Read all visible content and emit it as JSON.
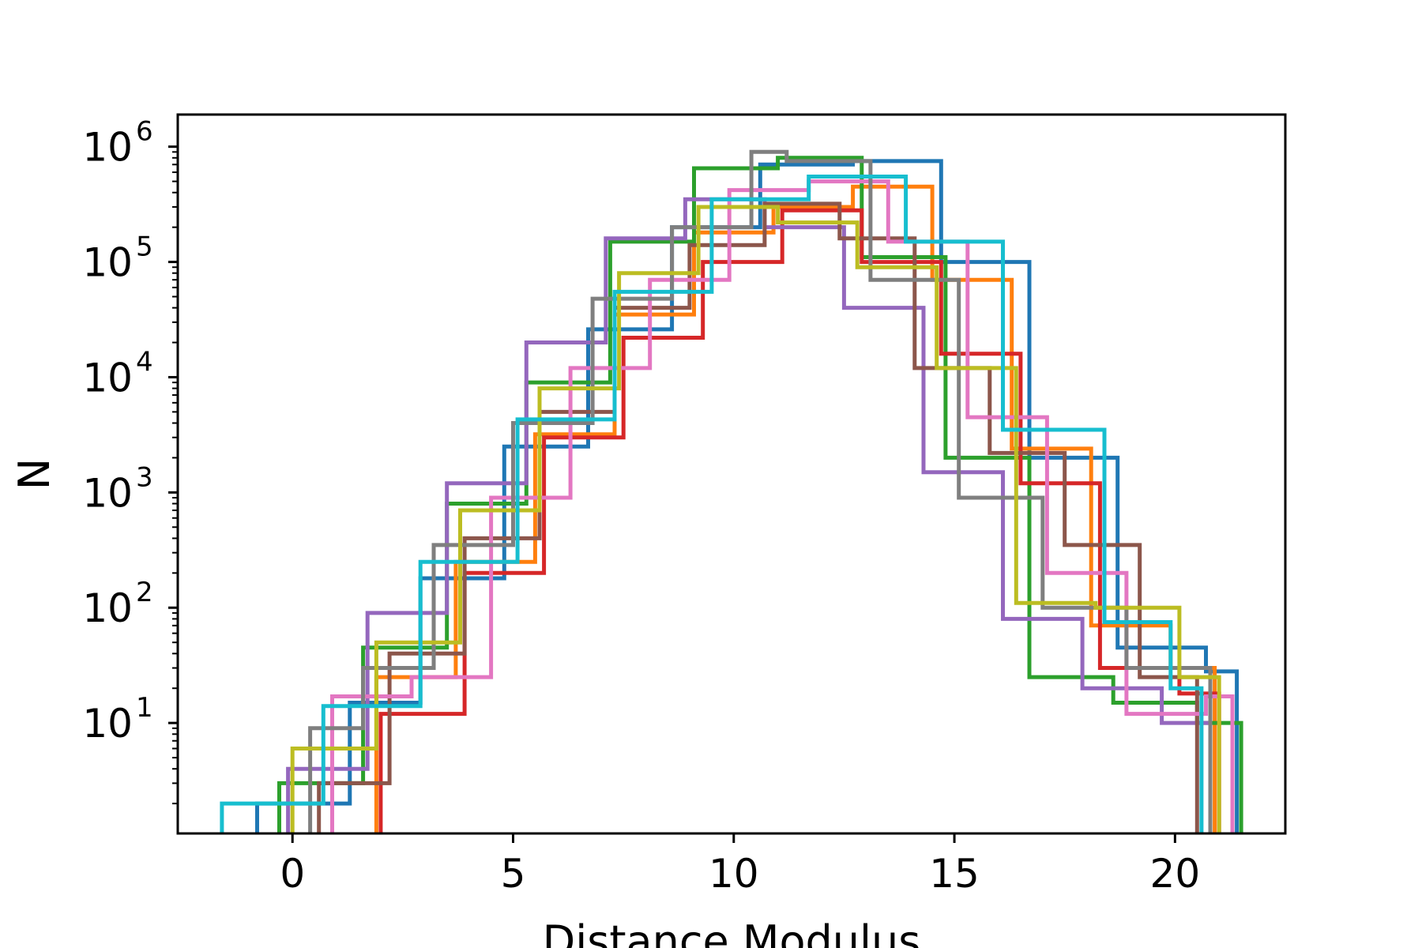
{
  "chart_data": {
    "type": "histogram",
    "title": "",
    "xlabel": "Distance Modulus",
    "ylabel": "N",
    "xlim": [
      -2.6,
      22.5
    ],
    "ylim": [
      1.1,
      1900000.0
    ],
    "yscale": "log",
    "grid": false,
    "legend": "none",
    "x_ticks": [
      0,
      5,
      10,
      15,
      20
    ],
    "x_tick_labels": [
      "0",
      "5",
      "10",
      "15",
      "20"
    ],
    "y_ticks": [
      10,
      100,
      1000,
      10000,
      100000,
      1000000
    ],
    "y_tick_labels": [
      {
        "base": "10",
        "exp": "1"
      },
      {
        "base": "10",
        "exp": "2"
      },
      {
        "base": "10",
        "exp": "3"
      },
      {
        "base": "10",
        "exp": "4"
      },
      {
        "base": "10",
        "exp": "5"
      },
      {
        "base": "10",
        "exp": "6"
      }
    ],
    "series": [
      {
        "color": "#1f77b4",
        "edges": [
          -0.8,
          1.3,
          2.9,
          4.8,
          6.7,
          8.6,
          10.6,
          12.7,
          14.7,
          16.7,
          18.7,
          20.7,
          21.4
        ],
        "values": [
          2,
          15,
          180,
          2500,
          26000,
          200000,
          700000,
          750000,
          100000,
          2000,
          45,
          28
        ]
      },
      {
        "color": "#ff7f0e",
        "edges": [
          0.0,
          1.9,
          3.7,
          5.5,
          7.3,
          9.1,
          10.9,
          12.7,
          14.5,
          16.3,
          18.1,
          19.9,
          20.9
        ],
        "values": [
          1,
          25,
          250,
          3200,
          35000,
          180000,
          300000,
          450000,
          70000,
          2400,
          70,
          30
        ]
      },
      {
        "color": "#2ca02c",
        "edges": [
          -0.3,
          1.6,
          3.5,
          5.3,
          7.2,
          9.1,
          11.0,
          12.9,
          14.8,
          16.7,
          18.6,
          20.5,
          21.5
        ],
        "values": [
          3,
          45,
          800,
          9000,
          150000,
          650000,
          800000,
          110000,
          2000,
          25,
          15,
          10
        ]
      },
      {
        "color": "#d62728",
        "edges": [
          0.2,
          2.0,
          3.9,
          5.7,
          7.5,
          9.3,
          11.1,
          12.9,
          14.7,
          16.5,
          18.3,
          20.1,
          21.0
        ],
        "values": [
          1,
          12,
          200,
          3000,
          22000,
          100000,
          280000,
          100000,
          16000,
          1200,
          30,
          18
        ]
      },
      {
        "color": "#9467bd",
        "edges": [
          -0.1,
          1.7,
          3.5,
          5.3,
          7.1,
          8.9,
          10.7,
          12.5,
          14.3,
          16.1,
          17.9,
          19.7,
          20.8
        ],
        "values": [
          4,
          90,
          1200,
          20000,
          160000,
          350000,
          200000,
          40000,
          1500,
          80,
          20,
          10
        ]
      },
      {
        "color": "#8c564b",
        "edges": [
          0.6,
          2.2,
          3.9,
          5.6,
          7.3,
          9.0,
          10.7,
          12.4,
          14.1,
          15.8,
          17.5,
          19.2,
          20.5
        ],
        "values": [
          3,
          40,
          400,
          5000,
          40000,
          140000,
          320000,
          160000,
          12000,
          2200,
          350,
          25
        ]
      },
      {
        "color": "#e377c2",
        "edges": [
          0.9,
          2.7,
          4.5,
          6.3,
          8.1,
          9.9,
          11.7,
          13.5,
          15.3,
          17.1,
          18.9,
          20.7,
          21.3
        ],
        "values": [
          17,
          25,
          900,
          12000,
          70000,
          420000,
          500000,
          150000,
          4500,
          200,
          12,
          17
        ]
      },
      {
        "color": "#7f7f7f",
        "edges": [
          0.4,
          1.6,
          3.2,
          5.0,
          6.8,
          8.6,
          10.4,
          11.2,
          13.1,
          15.1,
          17.0,
          18.9,
          20.8
        ],
        "values": [
          9,
          30,
          350,
          4000,
          48000,
          200000,
          900000,
          750000,
          70000,
          900,
          100,
          30
        ]
      },
      {
        "color": "#bcbd22",
        "edges": [
          0.0,
          1.9,
          3.8,
          5.6,
          7.4,
          9.2,
          11.0,
          12.8,
          14.6,
          16.4,
          18.2,
          20.1,
          21.0
        ],
        "values": [
          6,
          50,
          700,
          8000,
          80000,
          300000,
          220000,
          90000,
          12000,
          110,
          100,
          25
        ]
      },
      {
        "color": "#17becf",
        "edges": [
          -1.6,
          0.7,
          2.9,
          5.1,
          7.3,
          9.5,
          11.7,
          13.9,
          16.1,
          18.4,
          19.9,
          20.6
        ],
        "values": [
          2,
          14,
          250,
          4300,
          55000,
          350000,
          550000,
          150000,
          3500,
          75,
          20
        ]
      }
    ]
  }
}
